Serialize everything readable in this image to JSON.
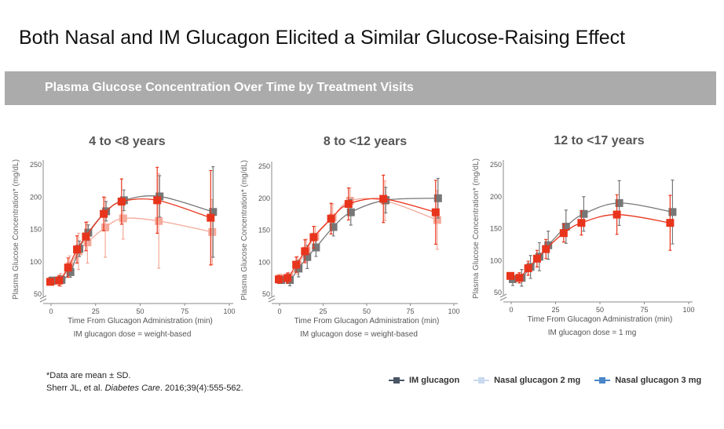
{
  "title": "Both Nasal and IM Glucagon Elicited a Similar Glucose-Raising Effect",
  "section_header": "Plasma Glucose Concentration Over Time by Treatment Visits",
  "footnote": {
    "note": "*Data are mean ± SD.",
    "citation_authors": "Sherr JL, et al. ",
    "citation_journal": "Diabetes Care",
    "citation_rest": ". 2016;39(4):555-562."
  },
  "legend": [
    {
      "label": "IM glucagon",
      "color": "#4a5566"
    },
    {
      "label": "Nasal glucagon 2 mg",
      "color": "#c9d9ee"
    },
    {
      "label": "Nasal glucagon 3 mg",
      "color": "#4a86c8"
    }
  ],
  "chart_data": [
    {
      "type": "line",
      "title": "4 to <8 years",
      "xlabel": "Time From Glucagon Administration (min)",
      "ylabel": "Plasma Glucose Concentration* (mg/dL)",
      "note": "IM glucagon dose = weight-based",
      "xlim": [
        0,
        100
      ],
      "ylim": [
        50,
        250
      ],
      "xticks": [
        0,
        25,
        50,
        75,
        100
      ],
      "yticks": [
        50,
        100,
        150,
        200,
        250
      ],
      "x": [
        0,
        5,
        10,
        15,
        20,
        30,
        40,
        60,
        90
      ],
      "series": [
        {
          "key": "im",
          "color": "#777777",
          "values": [
            71,
            72,
            84,
            120,
            145,
            178,
            195,
            201,
            177
          ],
          "sd": [
            5,
            6,
            8,
            12,
            12,
            15,
            16,
            32,
            70
          ]
        },
        {
          "key": "nasal2",
          "color": "#f4a99a",
          "values": [
            70,
            72,
            93,
            116,
            130,
            153,
            167,
            163,
            146
          ],
          "sd": [
            6,
            10,
            16,
            28,
            32,
            46,
            32,
            73,
            50
          ]
        },
        {
          "key": "nasal3",
          "color": "#e8341c",
          "values": [
            69,
            71,
            91,
            119,
            139,
            174,
            193,
            195,
            168
          ],
          "sd": [
            5,
            8,
            15,
            21,
            22,
            26,
            35,
            51,
            73
          ]
        }
      ]
    },
    {
      "type": "line",
      "title": "8 to <12 years",
      "xlabel": "Time From Glucagon Administration (min)",
      "ylabel": "Plasma Glucose Concentration* (mg/dL)",
      "note": "IM glucagon dose = weight-based",
      "xlim": [
        0,
        100
      ],
      "ylim": [
        50,
        250
      ],
      "xticks": [
        0,
        25,
        50,
        75,
        100
      ],
      "yticks": [
        50,
        100,
        150,
        200,
        250
      ],
      "x": [
        0,
        5,
        10,
        15,
        20,
        30,
        40,
        60,
        90
      ],
      "series": [
        {
          "key": "im",
          "color": "#777777",
          "values": [
            72,
            72,
            90,
            108,
            123,
            155,
            178,
            197,
            200
          ],
          "sd": [
            5,
            9,
            13,
            18,
            14,
            14,
            20,
            20,
            31
          ]
        },
        {
          "key": "nasal2",
          "color": "#f4a99a",
          "values": [
            75,
            76,
            95,
            118,
            140,
            170,
            196,
            196,
            166
          ],
          "sd": [
            6,
            8,
            14,
            18,
            16,
            21,
            20,
            31,
            46
          ]
        },
        {
          "key": "nasal3",
          "color": "#e8341c",
          "values": [
            73,
            75,
            96,
            117,
            139,
            168,
            191,
            199,
            178
          ],
          "sd": [
            6,
            8,
            12,
            18,
            17,
            24,
            25,
            37,
            50
          ]
        }
      ]
    },
    {
      "type": "line",
      "title": "12 to <17 years",
      "xlabel": "Time From Glucagon Administration (min)",
      "ylabel": "Plasma Glucose Concentration* (mg/dL)",
      "note": "IM glucagon dose = 1 mg",
      "xlim": [
        0,
        100
      ],
      "ylim": [
        50,
        250
      ],
      "xticks": [
        0,
        25,
        50,
        75,
        100
      ],
      "yticks": [
        50,
        100,
        150,
        200,
        250
      ],
      "x": [
        0,
        5,
        10,
        15,
        20,
        30,
        40,
        60,
        90
      ],
      "series": [
        {
          "key": "im",
          "color": "#777777",
          "values": [
            71,
            73,
            90,
            106,
            124,
            153,
            173,
            190,
            176
          ],
          "sd": [
            10,
            13,
            18,
            22,
            22,
            26,
            27,
            35,
            50
          ]
        },
        {
          "key": "nasal3",
          "color": "#e8341c",
          "values": [
            76,
            73,
            88,
            103,
            118,
            143,
            159,
            172,
            159
          ],
          "sd": [
            5,
            8,
            11,
            13,
            15,
            14,
            19,
            31,
            43
          ]
        }
      ]
    }
  ]
}
